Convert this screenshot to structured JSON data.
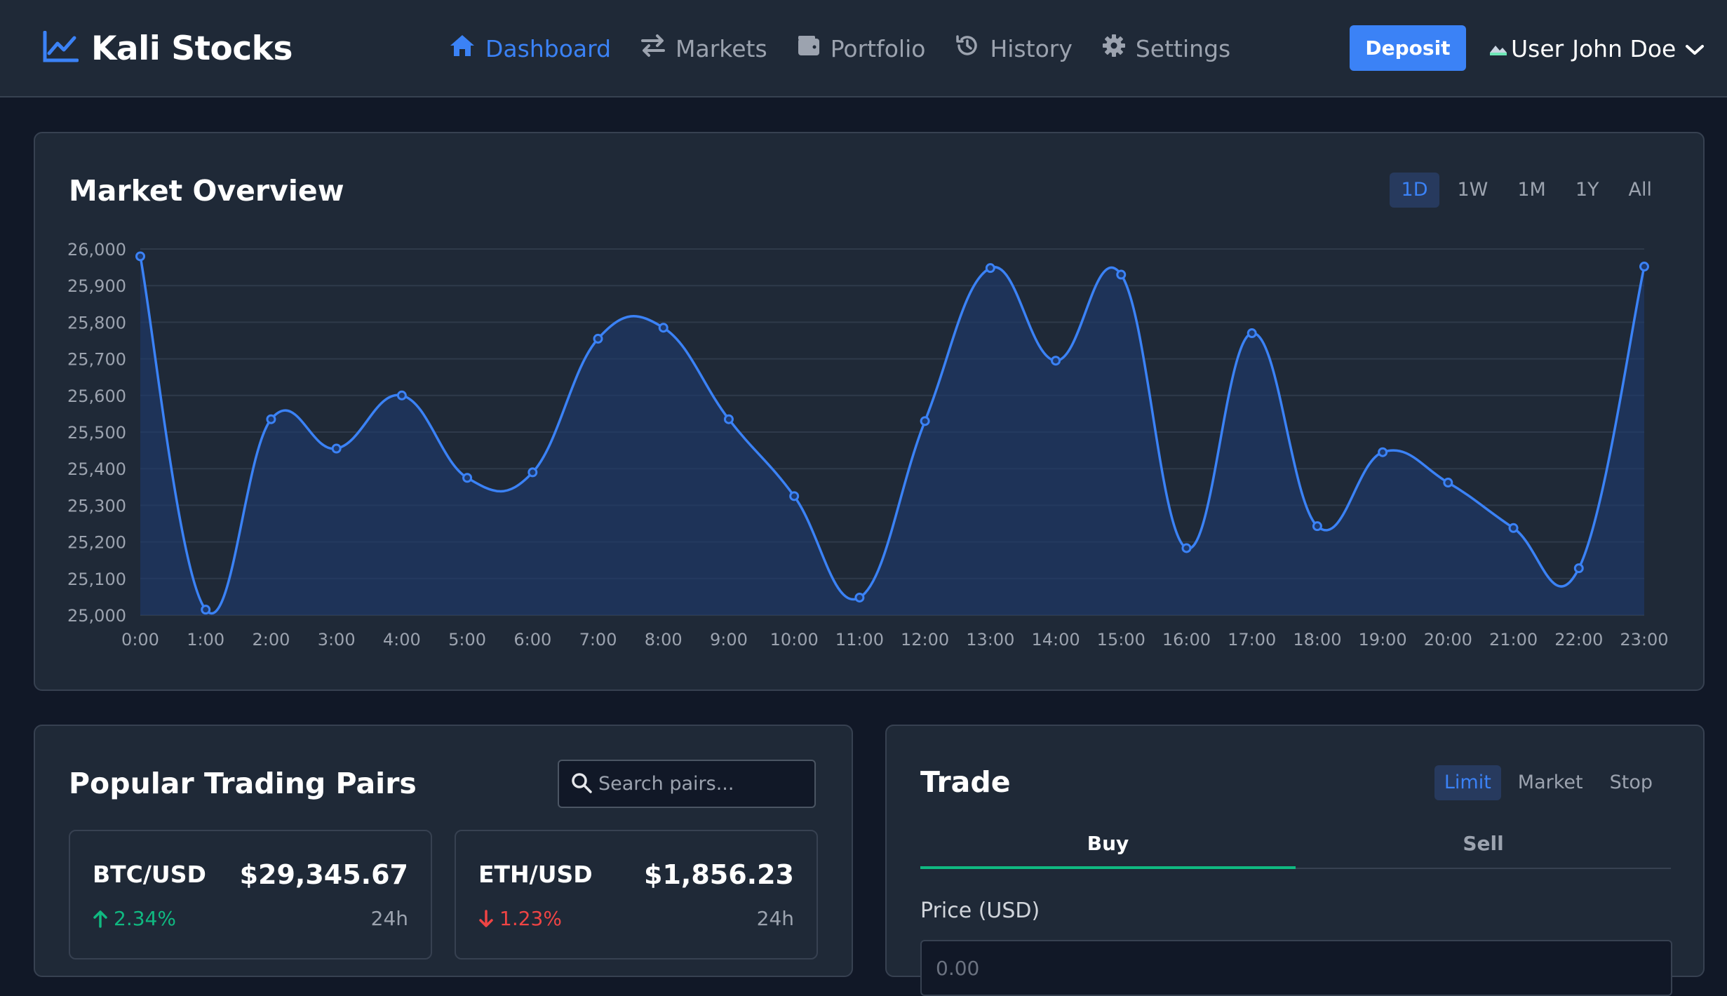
{
  "app": {
    "name": "Kali Stocks"
  },
  "nav": [
    {
      "label": "Dashboard",
      "icon": "home-icon",
      "active": true
    },
    {
      "label": "Markets",
      "icon": "exchange-icon",
      "active": false
    },
    {
      "label": "Portfolio",
      "icon": "wallet-icon",
      "active": false
    },
    {
      "label": "History",
      "icon": "history-icon",
      "active": false
    },
    {
      "label": "Settings",
      "icon": "gear-icon",
      "active": false
    }
  ],
  "header": {
    "deposit_label": "Deposit",
    "avatar_alt": "User",
    "user_name": "John Doe"
  },
  "market": {
    "title": "Market Overview",
    "ranges": [
      "1D",
      "1W",
      "1M",
      "1Y",
      "All"
    ],
    "active_range": "1D"
  },
  "chart_data": {
    "type": "area",
    "x": [
      "0:00",
      "1:00",
      "2:00",
      "3:00",
      "4:00",
      "5:00",
      "6:00",
      "7:00",
      "8:00",
      "9:00",
      "10:00",
      "11:00",
      "12:00",
      "13:00",
      "14:00",
      "15:00",
      "16:00",
      "17:00",
      "18:00",
      "19:00",
      "20:00",
      "21:00",
      "22:00",
      "23:00"
    ],
    "values": [
      25980,
      25015,
      25535,
      25455,
      25600,
      25375,
      25390,
      25755,
      25785,
      25535,
      25325,
      25048,
      25530,
      25948,
      25695,
      25930,
      25183,
      25770,
      25243,
      25445,
      25362,
      25238,
      25128,
      25952
    ],
    "ylim": [
      25000,
      26000
    ],
    "yticks": [
      25000,
      25100,
      25200,
      25300,
      25400,
      25500,
      25600,
      25700,
      25800,
      25900,
      26000
    ],
    "ytick_labels": [
      "25,000",
      "25,100",
      "25,200",
      "25,300",
      "25,400",
      "25,500",
      "25,600",
      "25,700",
      "25,800",
      "25,900",
      "26,000"
    ],
    "grid": true,
    "line_color": "#3b82f6",
    "fill_color": "#1e3a6e"
  },
  "pairs_section": {
    "title": "Popular Trading Pairs",
    "search_placeholder": "Search pairs...",
    "pairs": [
      {
        "symbol": "BTC/USD",
        "price": "$29,345.67",
        "change": "2.34%",
        "direction": "up",
        "period": "24h"
      },
      {
        "symbol": "ETH/USD",
        "price": "$1,856.23",
        "change": "1.23%",
        "direction": "down",
        "period": "24h"
      }
    ]
  },
  "trade": {
    "title": "Trade",
    "order_types": [
      "Limit",
      "Market",
      "Stop"
    ],
    "active_order_type": "Limit",
    "sides": [
      "Buy",
      "Sell"
    ],
    "active_side": "Buy",
    "price_label": "Price (USD)",
    "price_placeholder": "0.00"
  },
  "colors": {
    "accent": "#3b82f6",
    "up": "#10b981",
    "down": "#ef4444",
    "background": "#111827",
    "card": "#1f2937"
  }
}
